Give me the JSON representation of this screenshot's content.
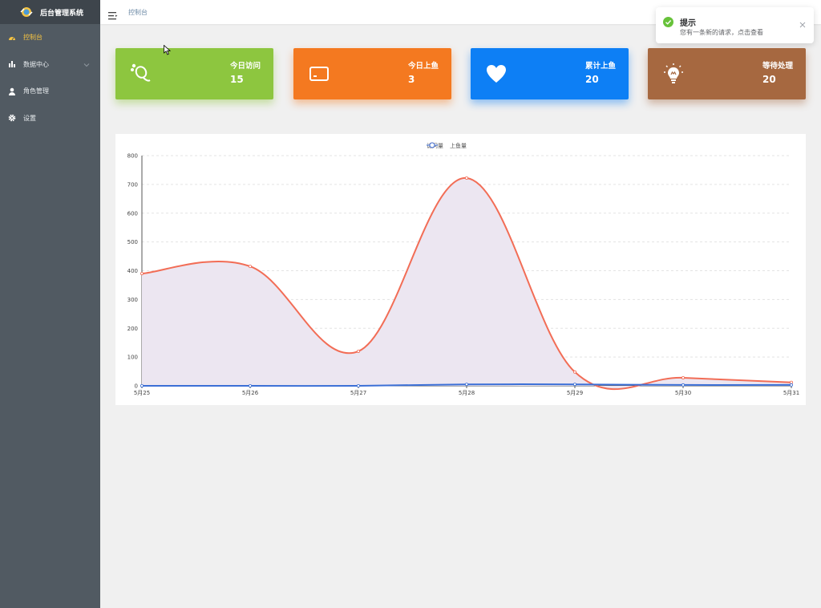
{
  "app": {
    "title": "后台管理系统"
  },
  "sidebar": {
    "items": [
      {
        "label": "控制台",
        "icon": "dashboard-icon",
        "active": true
      },
      {
        "label": "数据中心",
        "icon": "bar-chart-icon",
        "has_children": true
      },
      {
        "label": "角色管理",
        "icon": "user-icon"
      },
      {
        "label": "设置",
        "icon": "gear-icon"
      }
    ]
  },
  "header": {
    "breadcrumb": "控制台"
  },
  "toast": {
    "title": "提示",
    "message": "您有一条新的请求，点击查看"
  },
  "cards": [
    {
      "label": "今日访问",
      "value": "15",
      "color": "#8dc63f",
      "icon": "footprint-icon"
    },
    {
      "label": "今日上鱼",
      "value": "3",
      "color": "#f47920",
      "icon": "card-icon"
    },
    {
      "label": "累计上鱼",
      "value": "20",
      "color": "#0d7ff5",
      "icon": "heart-icon"
    },
    {
      "label": "等待处理",
      "value": "20",
      "color": "#a66840",
      "icon": "lightbulb-icon"
    }
  ],
  "chart_data": {
    "type": "line",
    "x": [
      "5月25",
      "5月26",
      "5月27",
      "5月28",
      "5月29",
      "5月30",
      "5月31"
    ],
    "series": [
      {
        "name": "访问量",
        "values": [
          390,
          415,
          120,
          722,
          48,
          28,
          12
        ],
        "color": "#f26d56",
        "area_color": "#ece6f1"
      },
      {
        "name": "上鱼量",
        "values": [
          0,
          0,
          0,
          5,
          5,
          3,
          3
        ],
        "color": "#3b6fd6"
      }
    ],
    "ylim": [
      0,
      800
    ],
    "yticks": [
      0,
      100,
      200,
      300,
      400,
      500,
      600,
      700,
      800
    ],
    "smooth": true,
    "grid": true,
    "legend": "top-center"
  }
}
